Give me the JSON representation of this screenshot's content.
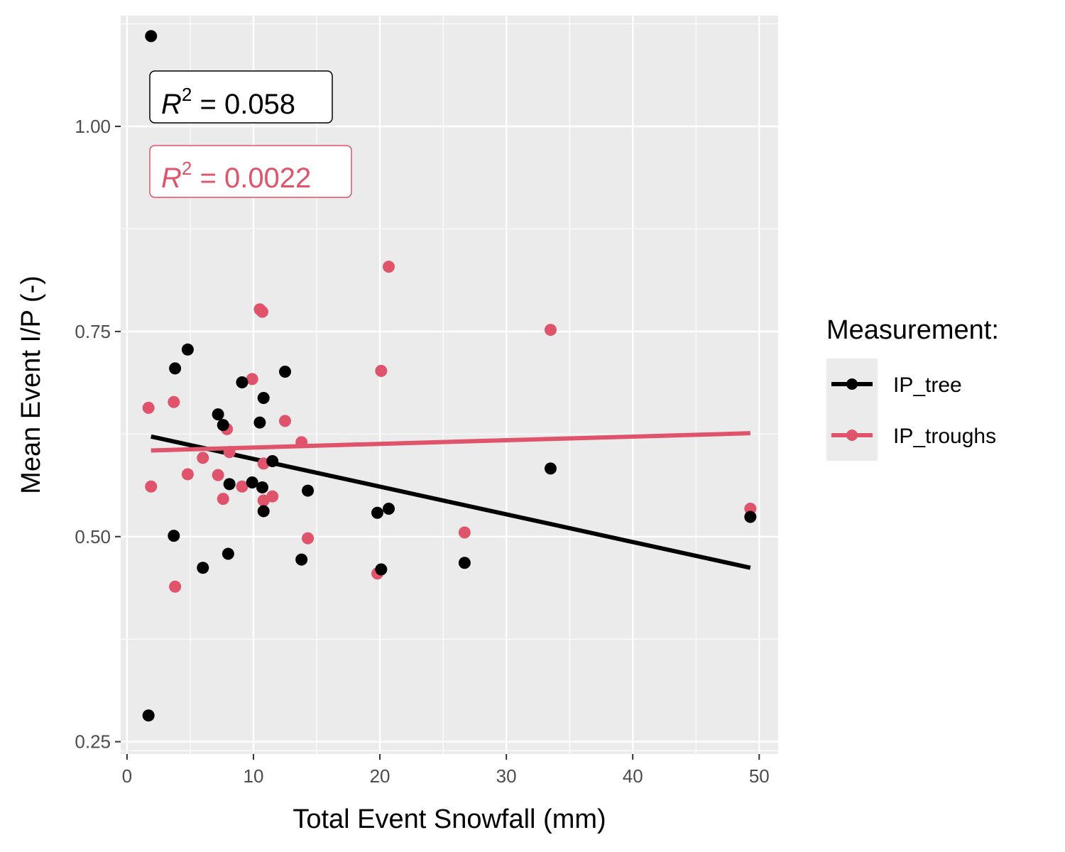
{
  "chart_data": {
    "type": "scatter",
    "xlabel": "Total Event Snowfall (mm)",
    "ylabel": "Mean Event I/P (-)",
    "xlim": [
      -0.5,
      51.5
    ],
    "ylim": [
      0.235,
      1.135
    ],
    "x_ticks": [
      0,
      10,
      20,
      30,
      40,
      50
    ],
    "x_tick_labels": [
      "0",
      "10",
      "20",
      "30",
      "40",
      "50"
    ],
    "y_ticks": [
      0.25,
      0.5,
      0.75,
      1.0
    ],
    "y_tick_labels": [
      "0.25",
      "0.50",
      "0.75",
      "1.00"
    ],
    "grid": true,
    "legend": {
      "title": "Measurement:",
      "position": "right"
    },
    "series": [
      {
        "name": "IP_tree",
        "color": "#000000",
        "points": [
          [
            1.9,
            1.11
          ],
          [
            1.7,
            0.282
          ],
          [
            3.8,
            0.705
          ],
          [
            3.7,
            0.501
          ],
          [
            4.8,
            0.728
          ],
          [
            6.0,
            0.462
          ],
          [
            7.2,
            0.649
          ],
          [
            7.6,
            0.636
          ],
          [
            8.0,
            0.479
          ],
          [
            8.1,
            0.564
          ],
          [
            9.1,
            0.688
          ],
          [
            9.9,
            0.566
          ],
          [
            10.5,
            0.639
          ],
          [
            10.7,
            0.56
          ],
          [
            10.8,
            0.531
          ],
          [
            10.8,
            0.669
          ],
          [
            11.5,
            0.592
          ],
          [
            12.5,
            0.701
          ],
          [
            13.8,
            0.472
          ],
          [
            14.3,
            0.556
          ],
          [
            19.8,
            0.529
          ],
          [
            20.1,
            0.46
          ],
          [
            20.7,
            0.534
          ],
          [
            26.7,
            0.468
          ],
          [
            33.5,
            0.583
          ],
          [
            49.3,
            0.524
          ]
        ],
        "fit": {
          "x": [
            1.9,
            49.3
          ],
          "y": [
            0.622,
            0.462
          ]
        },
        "r2_label": "0.058"
      },
      {
        "name": "IP_troughs",
        "color": "#df536b",
        "points": [
          [
            1.7,
            0.657
          ],
          [
            1.9,
            0.561
          ],
          [
            3.7,
            0.664
          ],
          [
            3.8,
            0.439
          ],
          [
            4.8,
            0.576
          ],
          [
            6.0,
            0.596
          ],
          [
            7.2,
            0.575
          ],
          [
            7.6,
            0.546
          ],
          [
            7.9,
            0.631
          ],
          [
            8.1,
            0.603
          ],
          [
            9.1,
            0.561
          ],
          [
            9.9,
            0.692
          ],
          [
            10.5,
            0.777
          ],
          [
            10.7,
            0.774
          ],
          [
            10.8,
            0.589
          ],
          [
            10.8,
            0.544
          ],
          [
            11.5,
            0.549
          ],
          [
            12.5,
            0.641
          ],
          [
            13.8,
            0.615
          ],
          [
            14.3,
            0.498
          ],
          [
            19.8,
            0.455
          ],
          [
            20.1,
            0.702
          ],
          [
            20.7,
            0.829
          ],
          [
            26.7,
            0.505
          ],
          [
            33.5,
            0.752
          ],
          [
            49.3,
            0.534
          ]
        ],
        "fit": {
          "x": [
            1.9,
            49.3
          ],
          "y": [
            0.605,
            0.626
          ]
        },
        "r2_label": "0.0022"
      }
    ]
  },
  "annotations": {
    "r2_symbol": "R",
    "r2_exponent": "2",
    "r2_equals": " = "
  },
  "colors": {
    "panel_background": "#ebebeb",
    "grid": "#ffffff",
    "tick_text": "#4d4d4d"
  }
}
